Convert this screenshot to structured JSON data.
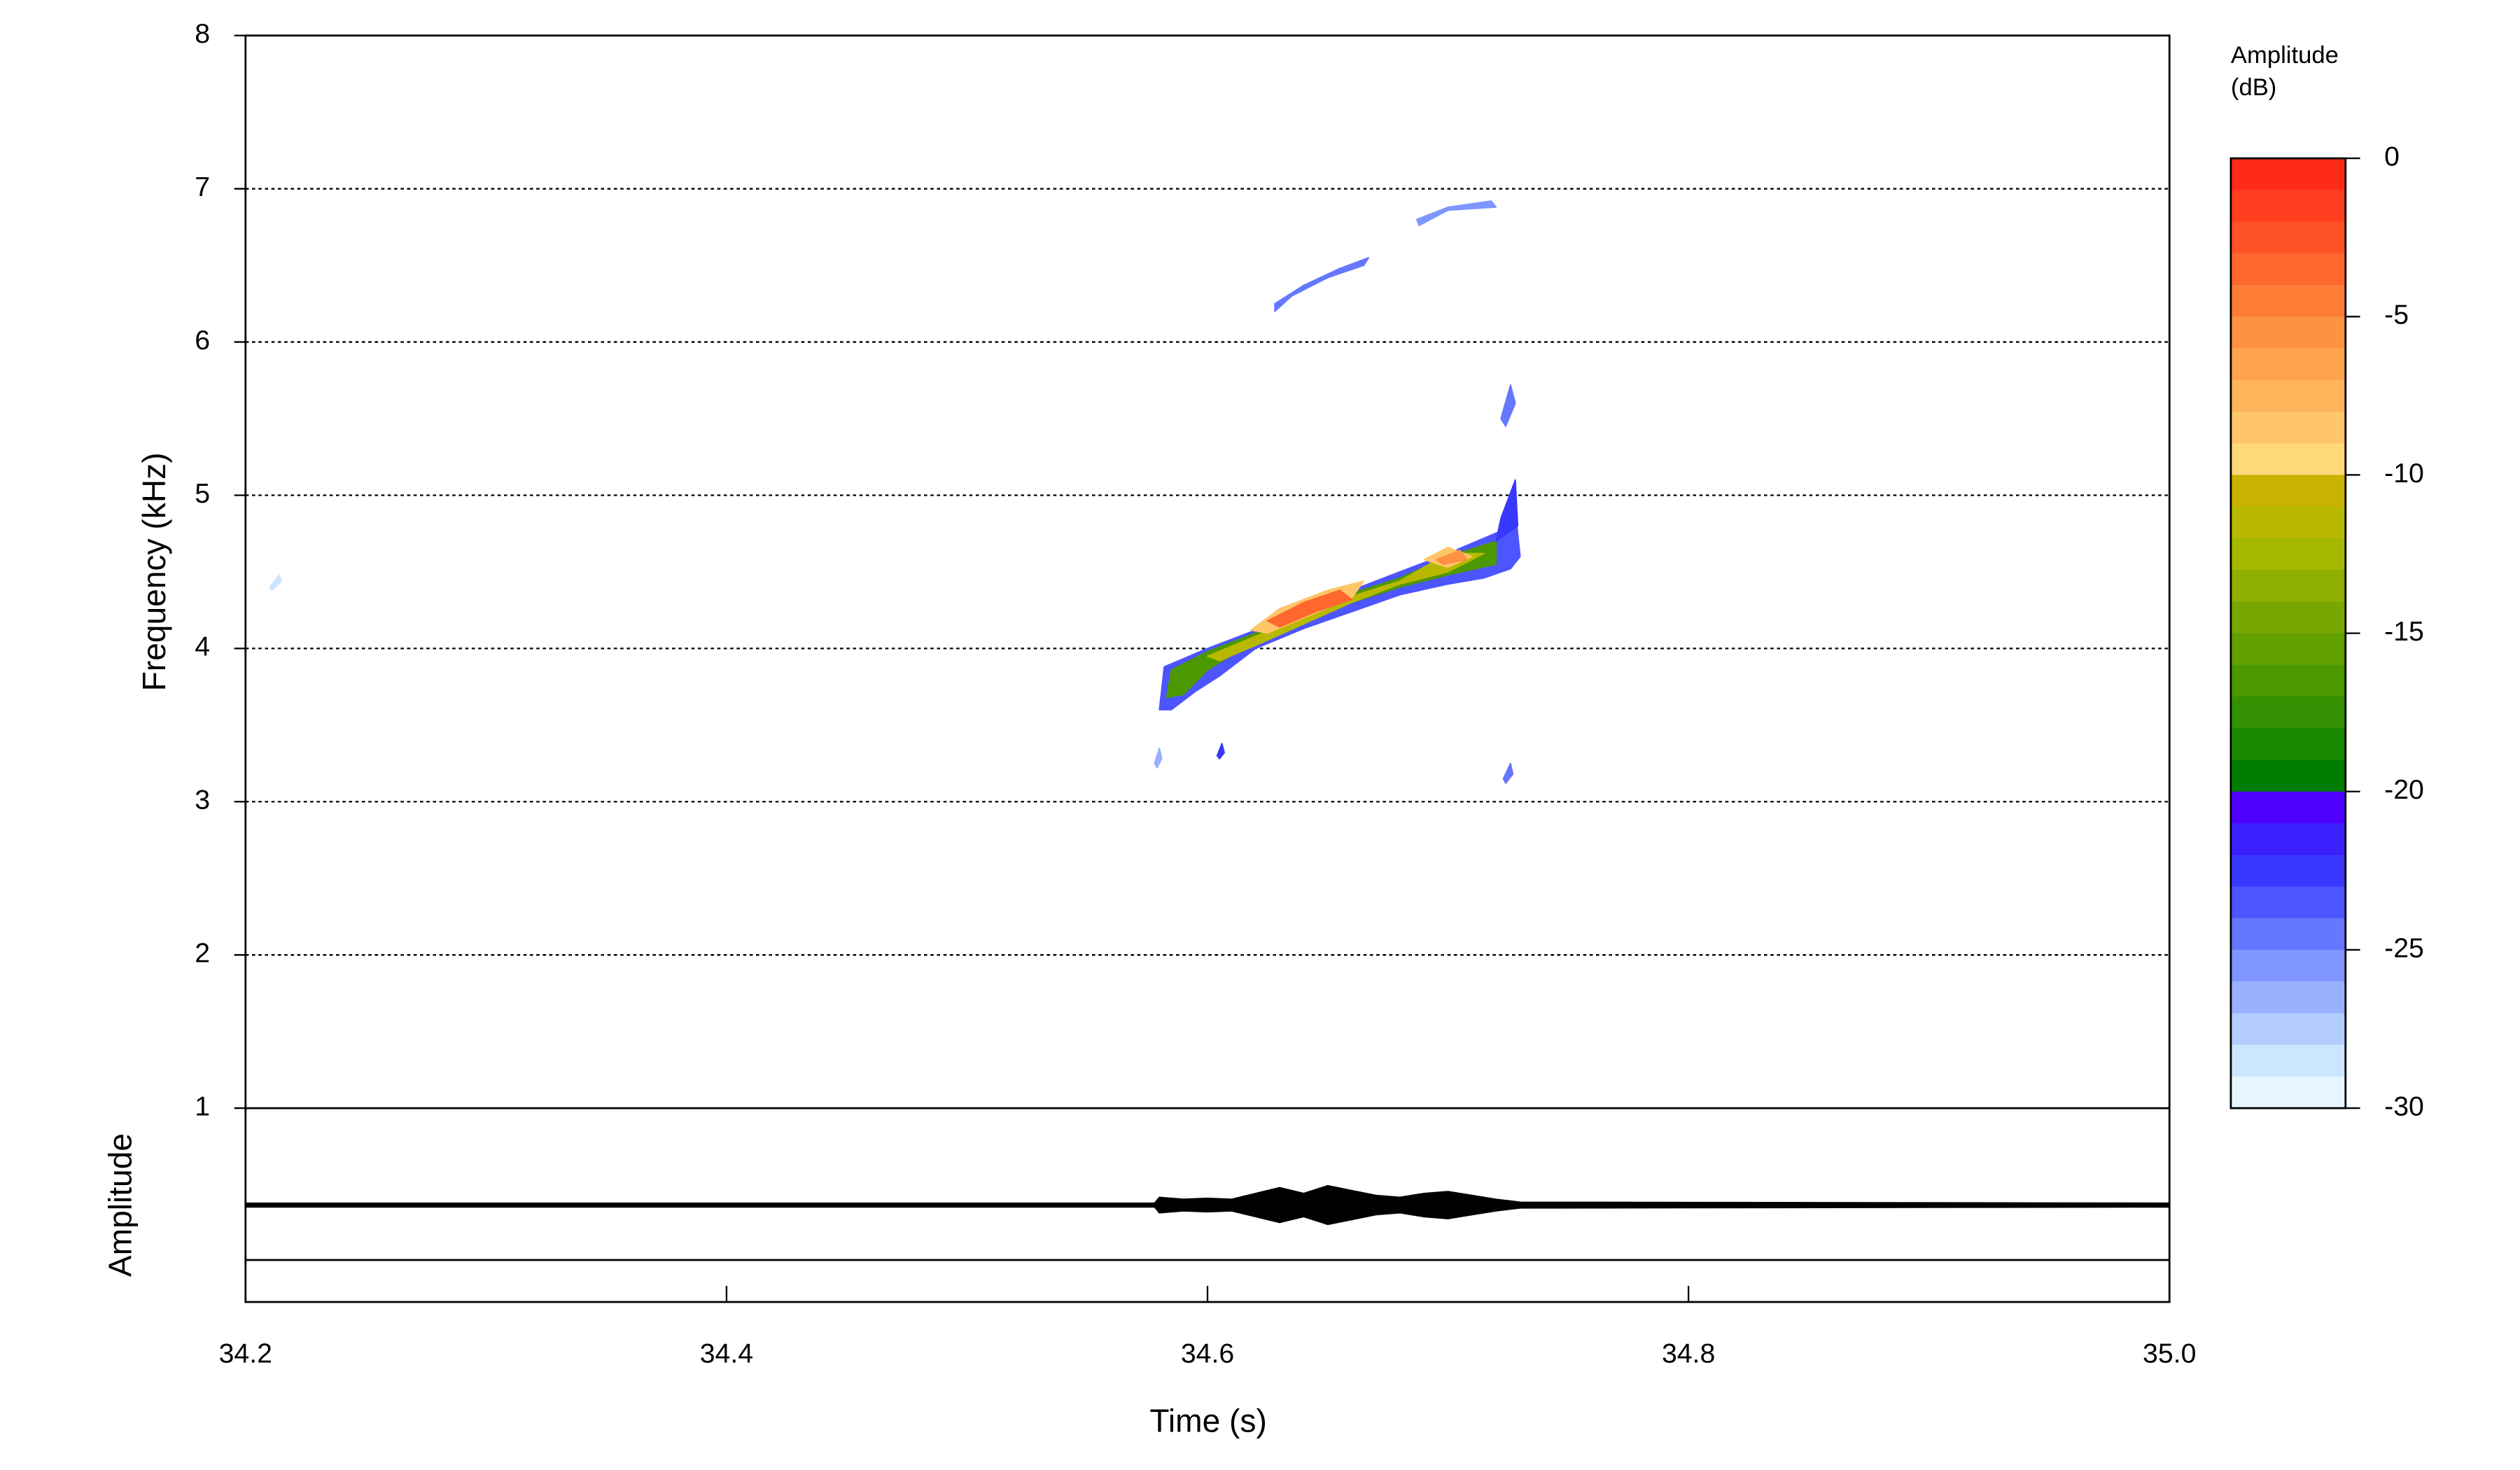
{
  "chart_data": {
    "type": "spectrogram",
    "x_label": "Time (s)",
    "y_label": "Frequency (kHz)",
    "amplitude_label": "Amplitude",
    "colorbar_title": [
      "Amplitude",
      "(dB)"
    ],
    "xlim": [
      34.2,
      35
    ],
    "xticks": [
      34.2,
      34.4,
      34.6,
      34.8,
      {
        "value": 35,
        "label": "35.0"
      }
    ],
    "ylim": [
      1,
      8
    ],
    "yticks": [
      1,
      2,
      3,
      4,
      5,
      6,
      7,
      8
    ],
    "grid": true,
    "clim": [
      -30,
      0
    ],
    "cticks": [
      0,
      -5,
      -10,
      -15,
      -20,
      -25,
      -30
    ],
    "colors": [
      "#ff2a1a",
      "#ff3d1f",
      "#ff5226",
      "#ff672e",
      "#ff7c37",
      "#ff9142",
      "#ffa34e",
      "#ffb45b",
      "#ffc669",
      "#ffd87a",
      "#c8b400",
      "#b8b800",
      "#a4b800",
      "#8fb000",
      "#78a800",
      "#62a000",
      "#4c9800",
      "#339000",
      "#1a8800",
      "#007d00",
      "#5000ff",
      "#3a1fff",
      "#3838ff",
      "#4d55ff",
      "#6677ff",
      "#7f95ff",
      "#99b0ff",
      "#b3cdff",
      "#cce6ff",
      "#e6f5ff"
    ],
    "contours": [
      {
        "level": -23,
        "t": [
          34.58,
          34.582,
          34.6,
          34.62,
          34.64,
          34.66,
          34.68,
          34.7,
          34.715,
          34.724,
          34.728,
          34.73,
          34.726,
          34.715,
          34.7,
          34.68,
          34.66,
          34.64,
          34.62,
          34.605,
          34.595,
          34.585
        ],
        "f": [
          3.6,
          3.88,
          4.0,
          4.12,
          4.26,
          4.38,
          4.5,
          4.62,
          4.72,
          4.78,
          4.9,
          4.6,
          4.52,
          4.46,
          4.42,
          4.35,
          4.24,
          4.13,
          4.0,
          3.82,
          3.72,
          3.6
        ]
      },
      {
        "level": -16,
        "t": [
          34.583,
          34.585,
          34.6,
          34.62,
          34.64,
          34.66,
          34.68,
          34.7,
          34.72,
          34.72,
          34.7,
          34.68,
          34.66,
          34.64,
          34.62,
          34.6,
          34.59
        ],
        "f": [
          3.68,
          3.86,
          3.98,
          4.1,
          4.24,
          4.36,
          4.46,
          4.6,
          4.7,
          4.55,
          4.48,
          4.4,
          4.3,
          4.18,
          4.05,
          3.86,
          3.7
        ]
      },
      {
        "level": -11,
        "t": [
          34.6,
          34.62,
          34.64,
          34.66,
          34.68,
          34.7,
          34.715,
          34.7,
          34.68,
          34.66,
          34.64,
          34.62,
          34.605
        ],
        "f": [
          3.95,
          4.08,
          4.2,
          4.34,
          4.44,
          4.62,
          4.62,
          4.5,
          4.42,
          4.3,
          4.16,
          4.02,
          3.92
        ]
      },
      {
        "level": -8,
        "t": [
          34.618,
          34.63,
          34.65,
          34.665,
          34.66,
          34.64,
          34.625
        ],
        "f": [
          4.12,
          4.26,
          4.38,
          4.44,
          4.33,
          4.2,
          4.1
        ]
      },
      {
        "level": -8,
        "t": [
          34.69,
          34.7,
          34.71,
          34.7
        ],
        "f": [
          4.58,
          4.66,
          4.6,
          4.53
        ]
      },
      {
        "level": -3,
        "t": [
          34.625,
          34.64,
          34.655,
          34.66,
          34.645,
          34.63
        ],
        "f": [
          4.18,
          4.3,
          4.38,
          4.32,
          4.24,
          4.14
        ]
      },
      {
        "level": -5,
        "t": [
          34.695,
          34.705,
          34.708,
          34.698
        ],
        "f": [
          4.58,
          4.64,
          4.58,
          4.55
        ]
      },
      {
        "level": -24,
        "t": [
          34.628,
          34.64,
          34.655,
          34.667,
          34.665,
          34.65,
          34.635,
          34.628
        ],
        "f": [
          6.25,
          6.37,
          6.48,
          6.55,
          6.5,
          6.42,
          6.3,
          6.2
        ]
      },
      {
        "level": -25,
        "t": [
          34.687,
          34.7,
          34.718,
          34.72,
          34.7,
          34.688
        ],
        "f": [
          6.8,
          6.88,
          6.92,
          6.88,
          6.86,
          6.76
        ]
      },
      {
        "level": -24,
        "t": [
          34.722,
          34.726,
          34.728,
          34.724
        ],
        "f": [
          5.5,
          5.72,
          5.6,
          5.45
        ]
      },
      {
        "level": -22,
        "t": [
          34.722,
          34.728,
          34.729,
          34.72
        ],
        "f": [
          4.85,
          5.1,
          4.8,
          4.7
        ]
      },
      {
        "level": -24,
        "t": [
          34.723,
          34.726,
          34.727,
          34.724
        ],
        "f": [
          3.15,
          3.25,
          3.18,
          3.12
        ]
      },
      {
        "level": -22,
        "t": [
          34.604,
          34.606,
          34.607,
          34.605
        ],
        "f": [
          3.3,
          3.38,
          3.32,
          3.28
        ]
      },
      {
        "level": -26,
        "t": [
          34.578,
          34.58,
          34.581,
          34.579
        ],
        "f": [
          3.25,
          3.35,
          3.28,
          3.22
        ]
      },
      {
        "level": -28,
        "t": [
          34.21,
          34.214,
          34.215,
          34.211
        ],
        "f": [
          4.4,
          4.48,
          4.44,
          4.38
        ]
      }
    ],
    "amplitude_lim": [
      -1,
      1
    ],
    "envelope_t": [
      34.2,
      34.578,
      34.58,
      34.59,
      34.6,
      34.61,
      34.62,
      34.63,
      34.64,
      34.65,
      34.66,
      34.67,
      34.68,
      34.69,
      34.7,
      34.71,
      34.72,
      34.73,
      35
    ],
    "envelope_a": [
      0.02,
      0.02,
      0.08,
      0.06,
      0.07,
      0.06,
      0.12,
      0.18,
      0.12,
      0.2,
      0.15,
      0.1,
      0.08,
      0.12,
      0.14,
      0.1,
      0.06,
      0.03,
      0.02
    ]
  }
}
